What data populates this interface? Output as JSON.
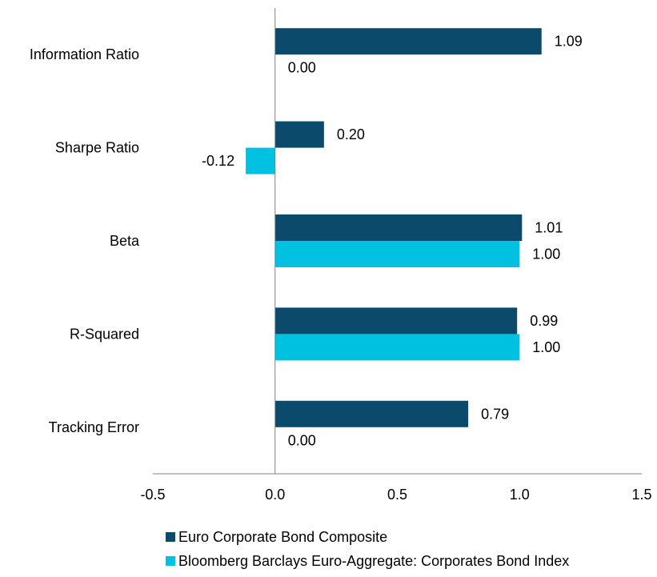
{
  "chart_data": {
    "type": "bar",
    "orientation": "horizontal",
    "categories": [
      "Information Ratio",
      "Sharpe Ratio",
      "Beta",
      "R-Squared",
      "Tracking Error"
    ],
    "series": [
      {
        "name": "Euro Corporate Bond Composite",
        "color": "#0b4a6b",
        "values": [
          1.09,
          0.2,
          1.01,
          0.99,
          0.79
        ],
        "labels": [
          "1.09",
          "0.20",
          "1.01",
          "0.99",
          "0.79"
        ]
      },
      {
        "name": "Bloomberg Barclays Euro-Aggregate: Corporates Bond Index",
        "color": "#00c2e0",
        "values": [
          0.0,
          -0.12,
          1.0,
          1.0,
          0.0
        ],
        "labels": [
          "0.00",
          "-0.12",
          "1.00",
          "1.00",
          "0.00"
        ]
      }
    ],
    "xlim": [
      -0.5,
      1.5
    ],
    "xticks": [
      -0.5,
      0.0,
      0.5,
      1.0,
      1.5
    ],
    "xtick_labels": [
      "-0.5",
      "0.0",
      "0.5",
      "1.0",
      "1.5"
    ],
    "grid": false,
    "legend_position": "bottom"
  }
}
